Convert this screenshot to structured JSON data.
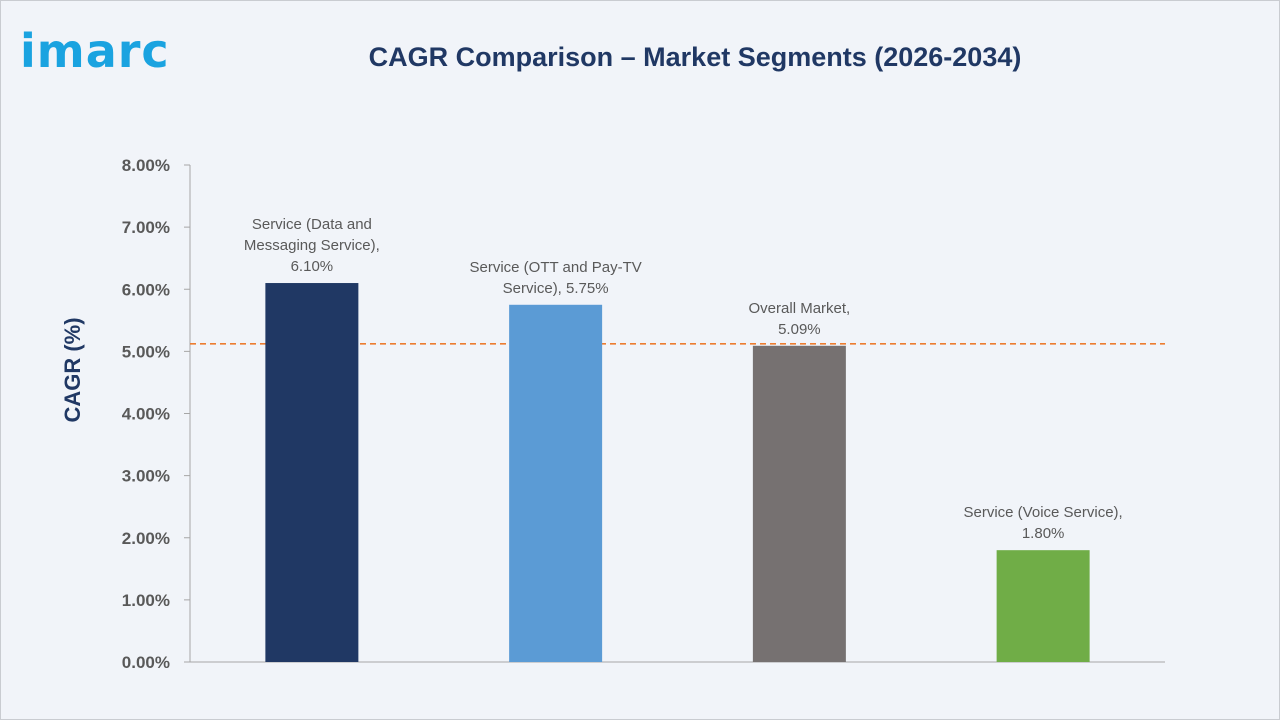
{
  "logo": "imarc",
  "chart_data": {
    "type": "bar",
    "title": "CAGR Comparison – Market Segments (2026-2034)",
    "xlabel": "",
    "ylabel": "CAGR (%)",
    "ylim": [
      0,
      8
    ],
    "yticks": [
      "0.00%",
      "1.00%",
      "2.00%",
      "3.00%",
      "4.00%",
      "5.00%",
      "6.00%",
      "7.00%",
      "8.00%"
    ],
    "grid": false,
    "categories": [
      "Service (Data and Messaging Service)",
      "Service (OTT and Pay-TV Service)",
      "Overall Market",
      "Service (Voice Service)"
    ],
    "values": [
      6.1,
      5.75,
      5.09,
      1.8
    ],
    "colors": [
      "#203864",
      "#5b9bd5",
      "#767171",
      "#70ad47"
    ],
    "data_labels": [
      [
        "Service (Data and",
        "Messaging Service),",
        "6.10%"
      ],
      [
        "Service (OTT and Pay-TV",
        "Service), 5.75%"
      ],
      [
        "Overall Market,",
        "5.09%"
      ],
      [
        "Service (Voice Service),",
        "1.80%"
      ]
    ],
    "reference_line": {
      "value": 5.09,
      "style": "dashed",
      "color": "#ed7d31"
    }
  }
}
